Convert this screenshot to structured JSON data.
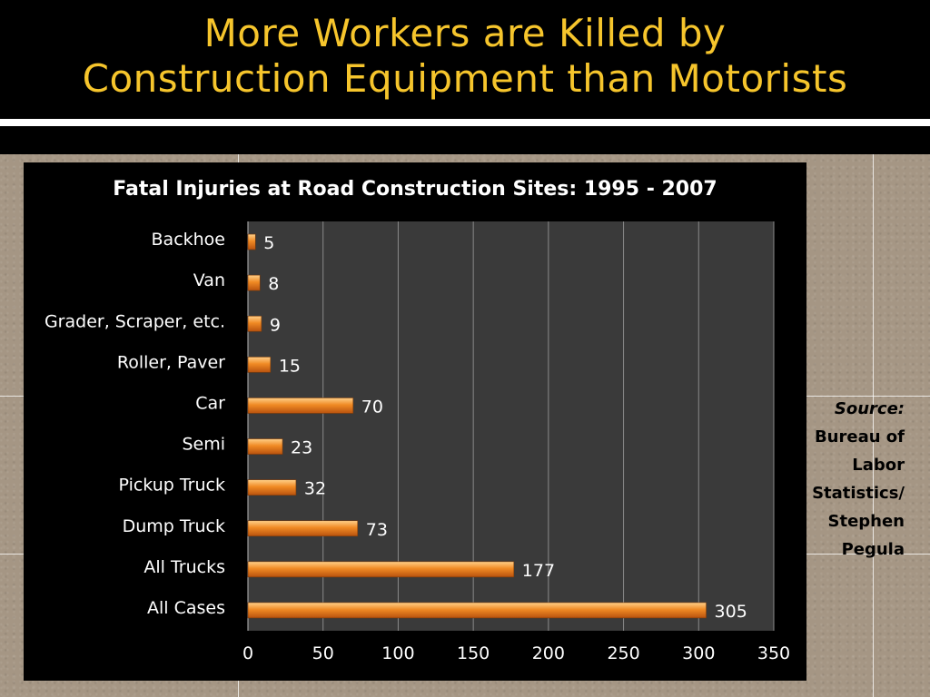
{
  "slide": {
    "title_line1": "More Workers are Killed by",
    "title_line2": "Construction Equipment than Motorists"
  },
  "source": {
    "label": "Source:",
    "lines": [
      "Bureau of",
      "Labor",
      "Statistics/",
      "Stephen",
      "Pegula"
    ]
  },
  "colors": {
    "title": "#f6c52c",
    "bar": "#f08a24",
    "plot_bg": "#3a3a3a",
    "panel_bg": "#000000"
  },
  "chart_data": {
    "type": "bar",
    "orientation": "horizontal",
    "title": "Fatal Injuries at Road Construction Sites:  1995 - 2007",
    "categories": [
      "Backhoe",
      "Van",
      "Grader, Scraper, etc.",
      "Roller, Paver",
      "Car",
      "Semi",
      "Pickup Truck",
      "Dump Truck",
      "All Trucks",
      "All Cases"
    ],
    "values": [
      5,
      8,
      9,
      15,
      70,
      23,
      32,
      73,
      177,
      305
    ],
    "xlim": [
      0,
      350
    ],
    "xticks": [
      0,
      50,
      100,
      150,
      200,
      250,
      300,
      350
    ],
    "xlabel": "",
    "ylabel": "",
    "grid": true,
    "data_labels": true
  }
}
